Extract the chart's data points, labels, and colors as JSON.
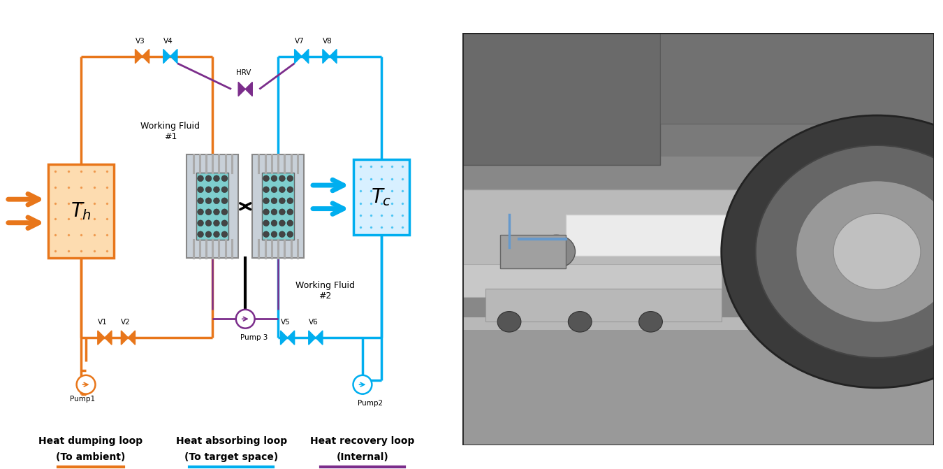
{
  "fig_width": 13.5,
  "fig_height": 6.71,
  "bg_color": "#ffffff",
  "orange_color": "#E8761A",
  "blue_color": "#00AEEF",
  "purple_color": "#7B2D8B",
  "gray_color": "#909090",
  "photo_bg": "#c8c8c8",
  "Th_label": "$T_h$",
  "Tc_label": "$T_c$",
  "label1": "Heat dumping loop",
  "label1b": "(To ambient)",
  "label2": "Heat absorbing loop",
  "label2b": "(To target space)",
  "label3": "Heat recovery loop",
  "label3b": "(Internal)"
}
